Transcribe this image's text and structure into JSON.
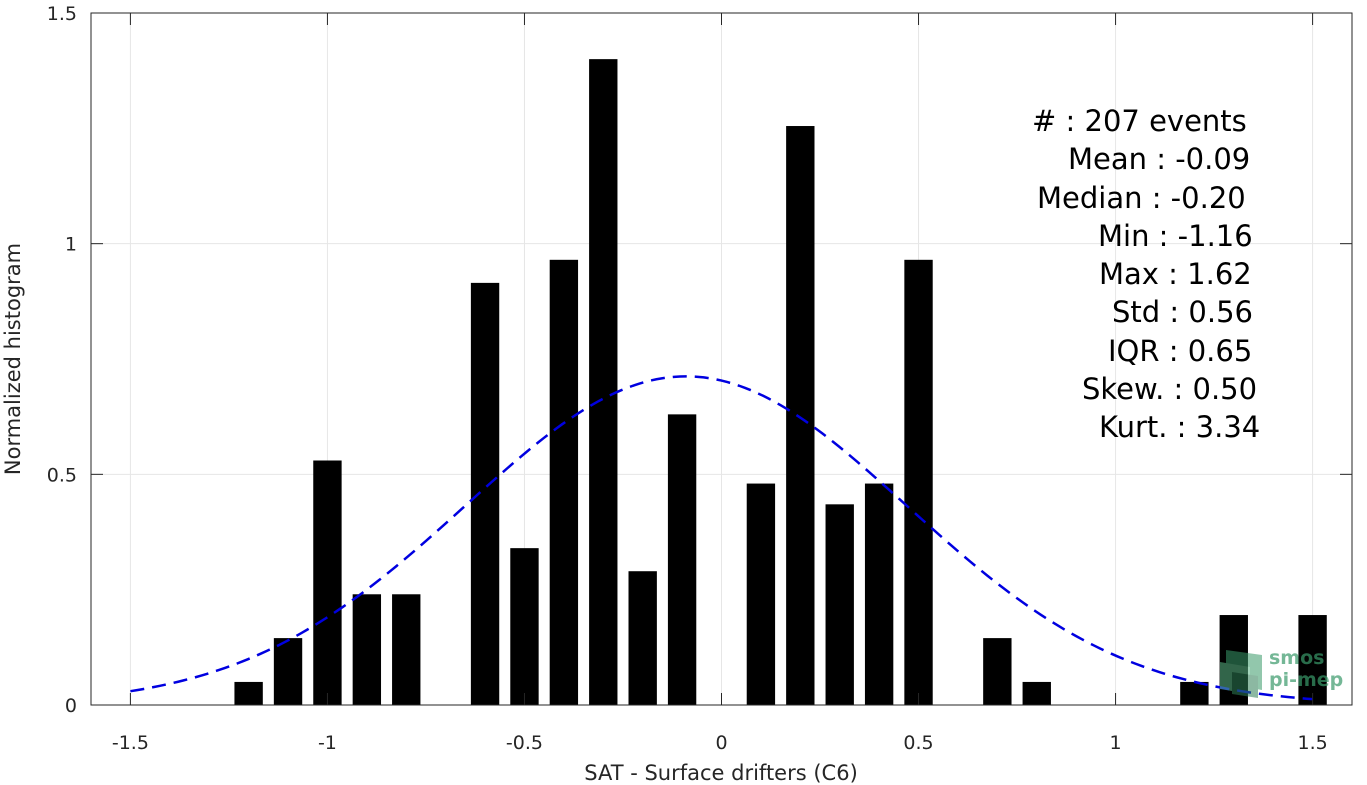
{
  "chart_data": {
    "type": "bar",
    "xlabel": "SAT - Surface drifters (C6)",
    "ylabel": "Normalized histogram",
    "xlim": [
      -1.6,
      1.6
    ],
    "ylim": [
      0,
      1.5
    ],
    "xticks": [
      -1.5,
      -1,
      -0.5,
      0,
      0.5,
      1,
      1.5
    ],
    "xtick_labels": [
      "-1.5",
      "-1",
      "-0.5",
      "0",
      "0.5",
      "1",
      "1.5"
    ],
    "yticks": [
      0,
      0.5,
      1,
      1.5
    ],
    "ytick_labels": [
      "0",
      "0.5",
      "1",
      "1.5"
    ],
    "grid": true,
    "bin_width": 0.1,
    "bars": [
      {
        "x": -1.2,
        "y": 0.05
      },
      {
        "x": -1.1,
        "y": 0.145
      },
      {
        "x": -1.0,
        "y": 0.53
      },
      {
        "x": -0.9,
        "y": 0.24
      },
      {
        "x": -0.8,
        "y": 0.24
      },
      {
        "x": -0.6,
        "y": 0.915
      },
      {
        "x": -0.5,
        "y": 0.34
      },
      {
        "x": -0.4,
        "y": 0.965
      },
      {
        "x": -0.3,
        "y": 1.4
      },
      {
        "x": -0.2,
        "y": 0.29
      },
      {
        "x": -0.1,
        "y": 0.63
      },
      {
        "x": 0.1,
        "y": 0.48
      },
      {
        "x": 0.2,
        "y": 1.255
      },
      {
        "x": 0.3,
        "y": 0.435
      },
      {
        "x": 0.4,
        "y": 0.48
      },
      {
        "x": 0.5,
        "y": 0.965
      },
      {
        "x": 0.7,
        "y": 0.145
      },
      {
        "x": 0.8,
        "y": 0.05
      },
      {
        "x": 1.2,
        "y": 0.05
      },
      {
        "x": 1.3,
        "y": 0.195
      },
      {
        "x": 1.5,
        "y": 0.195
      }
    ],
    "fit_curve": {
      "style": "dashed",
      "color": "#0000e0",
      "mean": -0.09,
      "std": 0.56,
      "x_range": [
        -1.5,
        1.5
      ]
    },
    "bar_color": "#000000",
    "annotations": [
      "#  : 207 events",
      "Mean : -0.09",
      "Median : -0.20",
      "Min : -1.16",
      "Max : 1.62",
      "Std : 0.56",
      "IQR : 0.65",
      "Skew. : 0.50",
      "Kurt. : 3.34"
    ]
  },
  "logo": {
    "line1": "smos",
    "line2": "pi-mep"
  }
}
